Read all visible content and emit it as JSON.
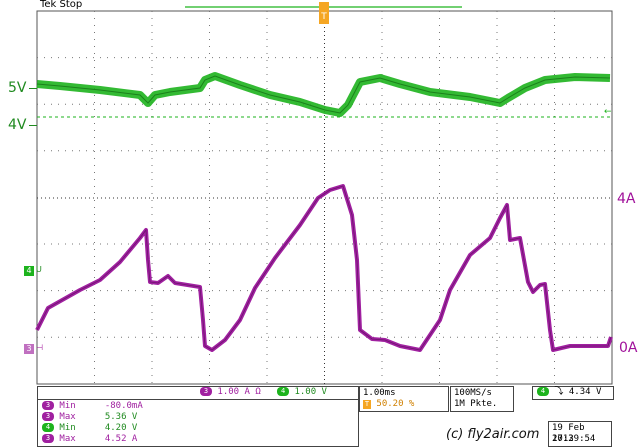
{
  "header": {
    "status": "Tek Stop",
    "trigger_marker": "T"
  },
  "colors": {
    "green_trace": "#1db31d",
    "green_label": "#1f8a1f",
    "magenta_trace": "#a020a0",
    "magenta_label": "#a0109a",
    "grid": "#555555"
  },
  "left_labels": {
    "v5": "5V",
    "v4": "4V"
  },
  "right_labels": {
    "a4": "4A",
    "a0": "0A"
  },
  "channel_markers": {
    "ch4": "4",
    "ch4_suffix": "U",
    "ch3": "3",
    "ch3_suffix": "⊣"
  },
  "status_bar": {
    "ch_magenta_num": "3",
    "ch_magenta_scale": "1.00 A",
    "ch_magenta_unit_sym": "Ω",
    "ch_green_num": "4",
    "ch_green_scale": "1.00 V",
    "timebase": "1.00ms",
    "position_flag": "T",
    "position": "50.20 %",
    "sample_rate": "100MS/s",
    "record_length": "1M Pkte.",
    "trig_channel": "4",
    "trig_slope": "⤵",
    "trig_level": "4.34 V"
  },
  "measurements": [
    {
      "ch": "3",
      "label": "Min",
      "value": "-80.0mA",
      "color": "#a020a0"
    },
    {
      "ch": "3",
      "label": "Max",
      "value": "5.36 V",
      "color": "#a020a0"
    },
    {
      "ch": "4",
      "label": "Min",
      "value": "4.20 V",
      "color": "#1db31d"
    },
    {
      "ch": "3",
      "label": "Max",
      "value": "4.52 A",
      "color": "#a020a0"
    }
  ],
  "watermark": "(c) fly2air.com",
  "datetime": {
    "date": "19 Feb 2013",
    "time": "17:29:54"
  }
}
